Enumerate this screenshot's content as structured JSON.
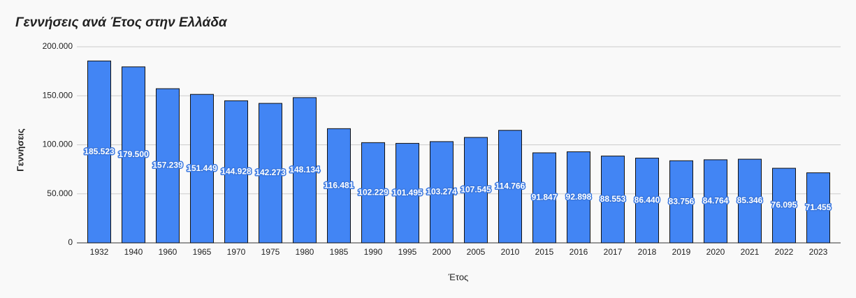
{
  "chart_data": {
    "type": "bar",
    "title": "Γεννήσεις ανά Έτος στην Ελλάδα",
    "x_label": "Έτος",
    "y_label": "Γεννήσεις",
    "categories": [
      "1932",
      "1940",
      "1960",
      "1965",
      "1970",
      "1975",
      "1980",
      "1985",
      "1990",
      "1995",
      "2000",
      "2005",
      "2010",
      "2015",
      "2016",
      "2017",
      "2018",
      "2019",
      "2020",
      "2021",
      "2022",
      "2023"
    ],
    "values": [
      185523,
      179500,
      157239,
      151449,
      144928,
      142273,
      148134,
      116481,
      102229,
      101495,
      103274,
      107545,
      114766,
      91847,
      92898,
      88553,
      86440,
      83756,
      84764,
      85346,
      76095,
      71455
    ],
    "value_labels": [
      "185.523",
      "179.500",
      "157.239",
      "151.449",
      "144.928",
      "142.273",
      "148.134",
      "116.481",
      "102.229",
      "101.495",
      "103.274",
      "107.545",
      "114.766",
      "91.847",
      "92.898",
      "88.553",
      "86.440",
      "83.756",
      "84.764",
      "85.346",
      "76.095",
      "71.455"
    ],
    "color": "#4285f4",
    "ylim": [
      0,
      200000
    ],
    "yticks": [
      0,
      {
        "value": 50000,
        "label": "50.000"
      },
      {
        "value": 100000,
        "label": "100.000"
      },
      {
        "value": 150000,
        "label": "150.000"
      },
      {
        "value": 200000,
        "label": "200.000"
      }
    ],
    "grid": true
  }
}
